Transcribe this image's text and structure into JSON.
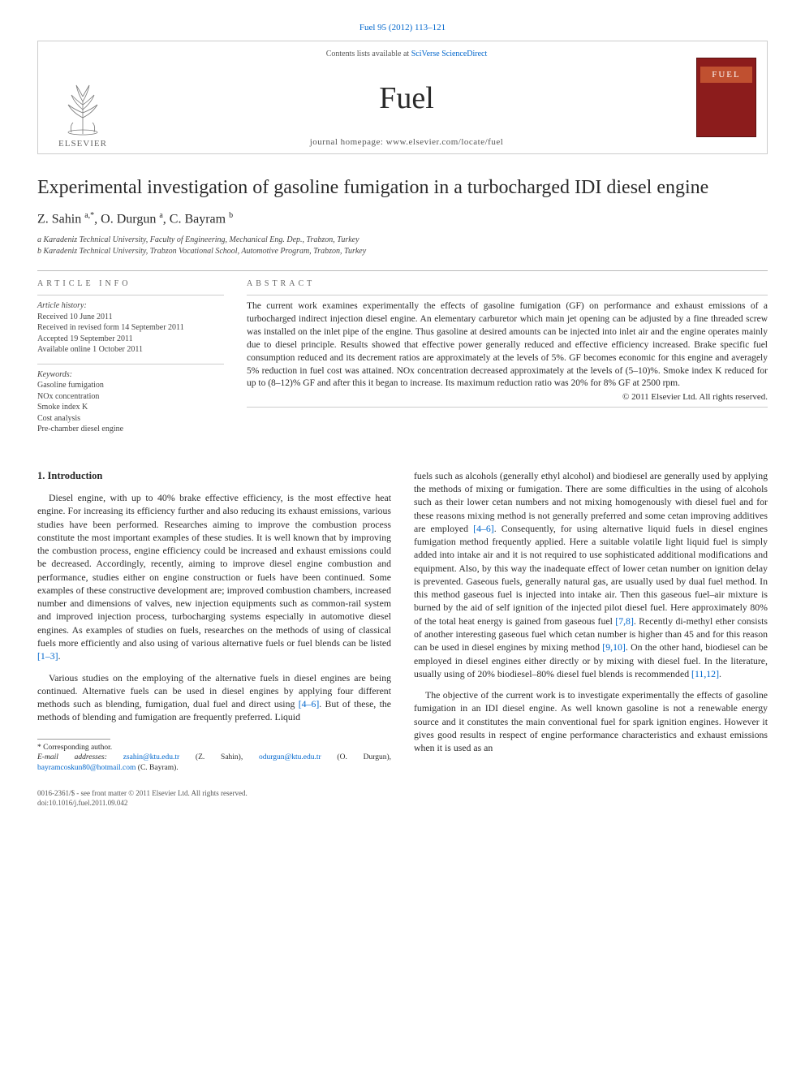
{
  "citation": "Fuel 95 (2012) 113–121",
  "masthead": {
    "contents_prefix": "Contents lists available at ",
    "contents_link": "SciVerse ScienceDirect",
    "journal": "Fuel",
    "homepage_prefix": "journal homepage: ",
    "homepage_url": "www.elsevier.com/locate/fuel",
    "elsevier_label": "ELSEVIER",
    "cover_label": "FUEL"
  },
  "title": "Experimental investigation of gasoline fumigation in a turbocharged IDI diesel engine",
  "authors_html": "Z. Sahin <span class='sup'>a,*</span>, O. Durgun <span class='sup'>a</span>, C. Bayram <span class='sup'>b</span>",
  "affiliations": [
    "a Karadeniz Technical University, Faculty of Engineering, Mechanical Eng. Dep., Trabzon, Turkey",
    "b Karadeniz Technical University, Trabzon Vocational School, Automotive Program, Trabzon, Turkey"
  ],
  "info": {
    "heading": "ARTICLE INFO",
    "history_label": "Article history:",
    "history": [
      "Received 10 June 2011",
      "Received in revised form 14 September 2011",
      "Accepted 19 September 2011",
      "Available online 1 October 2011"
    ],
    "keywords_label": "Keywords:",
    "keywords": [
      "Gasoline fumigation",
      "NOx concentration",
      "Smoke index K",
      "Cost analysis",
      "Pre-chamber diesel engine"
    ]
  },
  "abstract": {
    "heading": "ABSTRACT",
    "text": "The current work examines experimentally the effects of gasoline fumigation (GF) on performance and exhaust emissions of a turbocharged indirect injection diesel engine. An elementary carburetor which main jet opening can be adjusted by a fine threaded screw was installed on the inlet pipe of the engine. Thus gasoline at desired amounts can be injected into inlet air and the engine operates mainly due to diesel principle. Results showed that effective power generally reduced and effective efficiency increased. Brake specific fuel consumption reduced and its decrement ratios are approximately at the levels of 5%. GF becomes economic for this engine and averagely 5% reduction in fuel cost was attained. NOx concentration decreased approximately at the levels of (5–10)%. Smoke index K reduced for up to (8–12)% GF and after this it began to increase. Its maximum reduction ratio was 20% for 8% GF at 2500 rpm.",
    "copyright": "© 2011 Elsevier Ltd. All rights reserved."
  },
  "section1": {
    "heading": "1. Introduction",
    "p1": "Diesel engine, with up to 40% brake effective efficiency, is the most effective heat engine. For increasing its efficiency further and also reducing its exhaust emissions, various studies have been performed. Researches aiming to improve the combustion process constitute the most important examples of these studies. It is well known that by improving the combustion process, engine efficiency could be increased and exhaust emissions could be decreased. Accordingly, recently, aiming to improve diesel engine combustion and performance, studies either on engine construction or fuels have been continued. Some examples of these constructive development are; improved combustion chambers, increased number and dimensions of valves, new injection equipments such as common-rail system and improved injection process, turbocharging systems especially in automotive diesel engines. As examples of studies on fuels, researches on the methods of using of classical fuels more efficiently and also using of various alternative fuels or fuel blends can be listed ",
    "p1_ref": "[1–3]",
    "p2": "Various studies on the employing of the alternative fuels in diesel engines are being continued. Alternative fuels can be used in diesel engines by applying four different methods such as blending, fumigation, dual fuel and direct using ",
    "p2_ref": "[4–6]",
    "p2_cont": ". But of these, the methods of blending and fumigation are frequently preferred. Liquid"
  },
  "right_col": {
    "p1a": "fuels such as alcohols (generally ethyl alcohol) and biodiesel are generally used by applying the methods of mixing or fumigation. There are some difficulties in the using of alcohols such as their lower cetan numbers and not mixing homogenously with diesel fuel and for these reasons mixing method is not generally preferred and some cetan improving additives are employed ",
    "r1": "[4–6]",
    "p1b": ". Consequently, for using alternative liquid fuels in diesel engines fumigation method frequently applied. Here a suitable volatile light liquid fuel is simply added into intake air and it is not required to use sophisticated additional modifications and equipment. Also, by this way the inadequate effect of lower cetan number on ignition delay is prevented. Gaseous fuels, generally natural gas, are usually used by dual fuel method. In this method gaseous fuel is injected into intake air. Then this gaseous fuel–air mixture is burned by the aid of self ignition of the injected pilot diesel fuel. Here approximately 80% of the total heat energy is gained from gaseous fuel ",
    "r2": "[7,8]",
    "p1c": ". Recently di-methyl ether consists of another interesting gaseous fuel which cetan number is higher than 45 and for this reason can be used in diesel engines by mixing method ",
    "r3": "[9,10]",
    "p1d": ". On the other hand, biodiesel can be employed in diesel engines either directly or by mixing with diesel fuel. In the literature, usually using of 20% biodiesel–80% diesel fuel blends is recommended ",
    "r4": "[11,12]",
    "p2": "The objective of the current work is to investigate experimentally the effects of gasoline fumigation in an IDI diesel engine. As well known gasoline is not a renewable energy source and it constitutes the main conventional fuel for spark ignition engines. However it gives good results in respect of engine performance characteristics and exhaust emissions when it is used as an"
  },
  "footnotes": {
    "corr": "* Corresponding author.",
    "email_label": "E-mail addresses: ",
    "emails": [
      {
        "addr": "zsahin@ktu.edu.tr",
        "who": "(Z. Sahin)"
      },
      {
        "addr": "odurgun@ktu.edu.tr",
        "who": "(O. Durgun)"
      },
      {
        "addr": "bayramcoskun80@hotmail.com",
        "who": "(C. Bayram)"
      }
    ]
  },
  "bottom": {
    "issn_line": "0016-2361/$ - see front matter © 2011 Elsevier Ltd. All rights reserved.",
    "doi_line": "doi:10.1016/j.fuel.2011.09.042"
  },
  "colors": {
    "link": "#0066cc",
    "cover_bg": "#8c1c1c",
    "cover_band": "#c05030",
    "rule": "#bbbbbb",
    "text": "#2a2a2a"
  }
}
